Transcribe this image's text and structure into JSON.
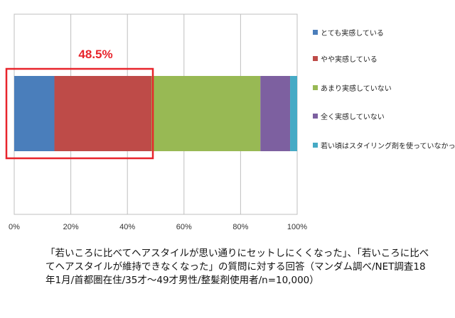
{
  "chart_data": {
    "type": "bar",
    "orientation": "horizontal",
    "stacked": true,
    "percent": true,
    "xlim": [
      0,
      100
    ],
    "x_ticks": [
      "0%",
      "20%",
      "40%",
      "60%",
      "80%",
      "100%"
    ],
    "grid": true,
    "legend_position": "right",
    "series": [
      {
        "name": "とても実感している",
        "value": 14.2,
        "color": "#4a7ebb"
      },
      {
        "name": "やや実感している",
        "value": 34.3,
        "color": "#be4b48"
      },
      {
        "name": "あまり実感していない",
        "value": 38.5,
        "color": "#98b954"
      },
      {
        "name": "全く実感していない",
        "value": 10.5,
        "color": "#7d60a0"
      },
      {
        "name": "若い頃はスタイリング剤を使っていなかった",
        "value": 2.5,
        "color": "#46aac5"
      }
    ],
    "annotation": {
      "label": "48.5%",
      "range": [
        0,
        48.5
      ],
      "color": "#e8242c"
    }
  },
  "caption": "「若いころに比べてヘアスタイルが思い通りにセットしにくくなった」、「若いころに比べてヘアスタイルが維持できなくなった」の質問に対する回答（マンダム調べ/NET調査18年1月/首都圏在住/35才～49才男性/整髪剤使用者/n=10,000）"
}
